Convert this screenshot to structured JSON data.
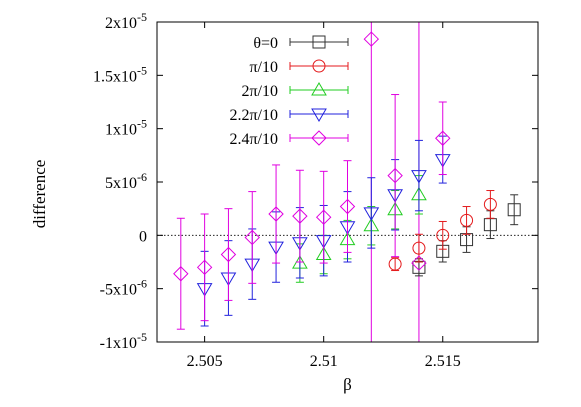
{
  "chart_data": {
    "type": "scatter",
    "title": "",
    "xlabel": "β",
    "ylabel": "difference",
    "xlim": [
      2.503,
      2.519
    ],
    "ylim": [
      -1e-05,
      2e-05
    ],
    "x_ticks": [
      2.505,
      2.51,
      2.515
    ],
    "x_tick_labels": [
      "2.505",
      "2.51",
      "2.515"
    ],
    "y_ticks": [
      -1e-05,
      -5e-06,
      0,
      5e-06,
      1e-05,
      1.5e-05,
      2e-05
    ],
    "y_tick_labels": [
      "-1x10",
      "-5x10",
      "0",
      "5x10",
      "1x10",
      "1.5x10",
      "2x10"
    ],
    "y_tick_exponents": [
      "-5",
      "-6",
      "",
      "-6",
      "-5",
      "-5",
      "-5"
    ],
    "grid": false,
    "zero_line": true,
    "legend_position": "top-left",
    "vertical_lines": [
      {
        "x": 2.512,
        "color": "#e000e0"
      },
      {
        "x": 2.514,
        "color": "#e000e0"
      }
    ],
    "series": [
      {
        "name": "θ=0",
        "marker": "square",
        "color": "#333333",
        "points": [
          {
            "x": 2.514,
            "y": -3e-06,
            "err": 8e-07
          },
          {
            "x": 2.515,
            "y": -1.5e-06,
            "err": 1e-06
          },
          {
            "x": 2.516,
            "y": -4e-07,
            "err": 1.2e-06
          },
          {
            "x": 2.517,
            "y": 1e-06,
            "err": 1.3e-06
          },
          {
            "x": 2.518,
            "y": 2.4e-06,
            "err": 1.4e-06
          }
        ]
      },
      {
        "name": "π/10",
        "marker": "circle",
        "color": "#e41a1c",
        "points": [
          {
            "x": 2.513,
            "y": -2.7e-06,
            "err": 6e-07
          },
          {
            "x": 2.514,
            "y": -1.2e-06,
            "err": 1.3e-06
          },
          {
            "x": 2.515,
            "y": 0.0,
            "err": 1.3e-06
          },
          {
            "x": 2.516,
            "y": 1.4e-06,
            "err": 1.3e-06
          },
          {
            "x": 2.517,
            "y": 2.9e-06,
            "err": 1.3e-06
          }
        ]
      },
      {
        "name": "2π/10",
        "marker": "triangle-up",
        "color": "#22cc22",
        "points": [
          {
            "x": 2.509,
            "y": -2.6e-06,
            "err": 1.8e-06
          },
          {
            "x": 2.51,
            "y": -1.8e-06,
            "err": 1.8e-06
          },
          {
            "x": 2.511,
            "y": -4e-07,
            "err": 1.8e-06
          },
          {
            "x": 2.512,
            "y": 9e-07,
            "err": 1.8e-06
          },
          {
            "x": 2.513,
            "y": 2.4e-06,
            "err": 1.8e-06
          },
          {
            "x": 2.514,
            "y": 3.8e-06,
            "err": 1.8e-06
          }
        ]
      },
      {
        "name": "2.2π/10",
        "marker": "triangle-down",
        "color": "#2222dd",
        "points": [
          {
            "x": 2.505,
            "y": -5e-06,
            "err": 3.5e-06
          },
          {
            "x": 2.506,
            "y": -4e-06,
            "err": 3.5e-06
          },
          {
            "x": 2.507,
            "y": -2.7e-06,
            "err": 3.3e-06
          },
          {
            "x": 2.508,
            "y": -1.1e-06,
            "err": 3.3e-06
          },
          {
            "x": 2.509,
            "y": -7e-07,
            "err": 3.3e-06
          },
          {
            "x": 2.51,
            "y": -5e-07,
            "err": 3.3e-06
          },
          {
            "x": 2.511,
            "y": 8e-07,
            "err": 3.3e-06
          },
          {
            "x": 2.512,
            "y": 2.1e-06,
            "err": 3.3e-06
          },
          {
            "x": 2.513,
            "y": 3.8e-06,
            "err": 3.3e-06
          },
          {
            "x": 2.514,
            "y": 5.6e-06,
            "err": 3.3e-06
          },
          {
            "x": 2.515,
            "y": 7.1e-06,
            "err": 2.2e-06
          }
        ]
      },
      {
        "name": "2.4π/10",
        "marker": "diamond",
        "color": "#e000e0",
        "points": [
          {
            "x": 2.504,
            "y": -3.6e-06,
            "err": 5.2e-06
          },
          {
            "x": 2.505,
            "y": -3e-06,
            "err": 5e-06
          },
          {
            "x": 2.506,
            "y": -1.8e-06,
            "err": 4.3e-06
          },
          {
            "x": 2.507,
            "y": -2e-07,
            "err": 4.3e-06
          },
          {
            "x": 2.508,
            "y": 2e-06,
            "err": 4.6e-06
          },
          {
            "x": 2.509,
            "y": 1.8e-06,
            "err": 4.3e-06
          },
          {
            "x": 2.51,
            "y": 1.7e-06,
            "err": 4.3e-06
          },
          {
            "x": 2.511,
            "y": 2.7e-06,
            "err": 4.3e-06
          },
          {
            "x": 2.512,
            "y": 1.84e-05,
            "err": 0
          },
          {
            "x": 2.513,
            "y": 5.6e-06,
            "err": 7.6e-06
          },
          {
            "x": 2.514,
            "y": -2.6e-06,
            "err": 0
          },
          {
            "x": 2.515,
            "y": 9.1e-06,
            "err": 3.4e-06
          }
        ]
      }
    ]
  }
}
